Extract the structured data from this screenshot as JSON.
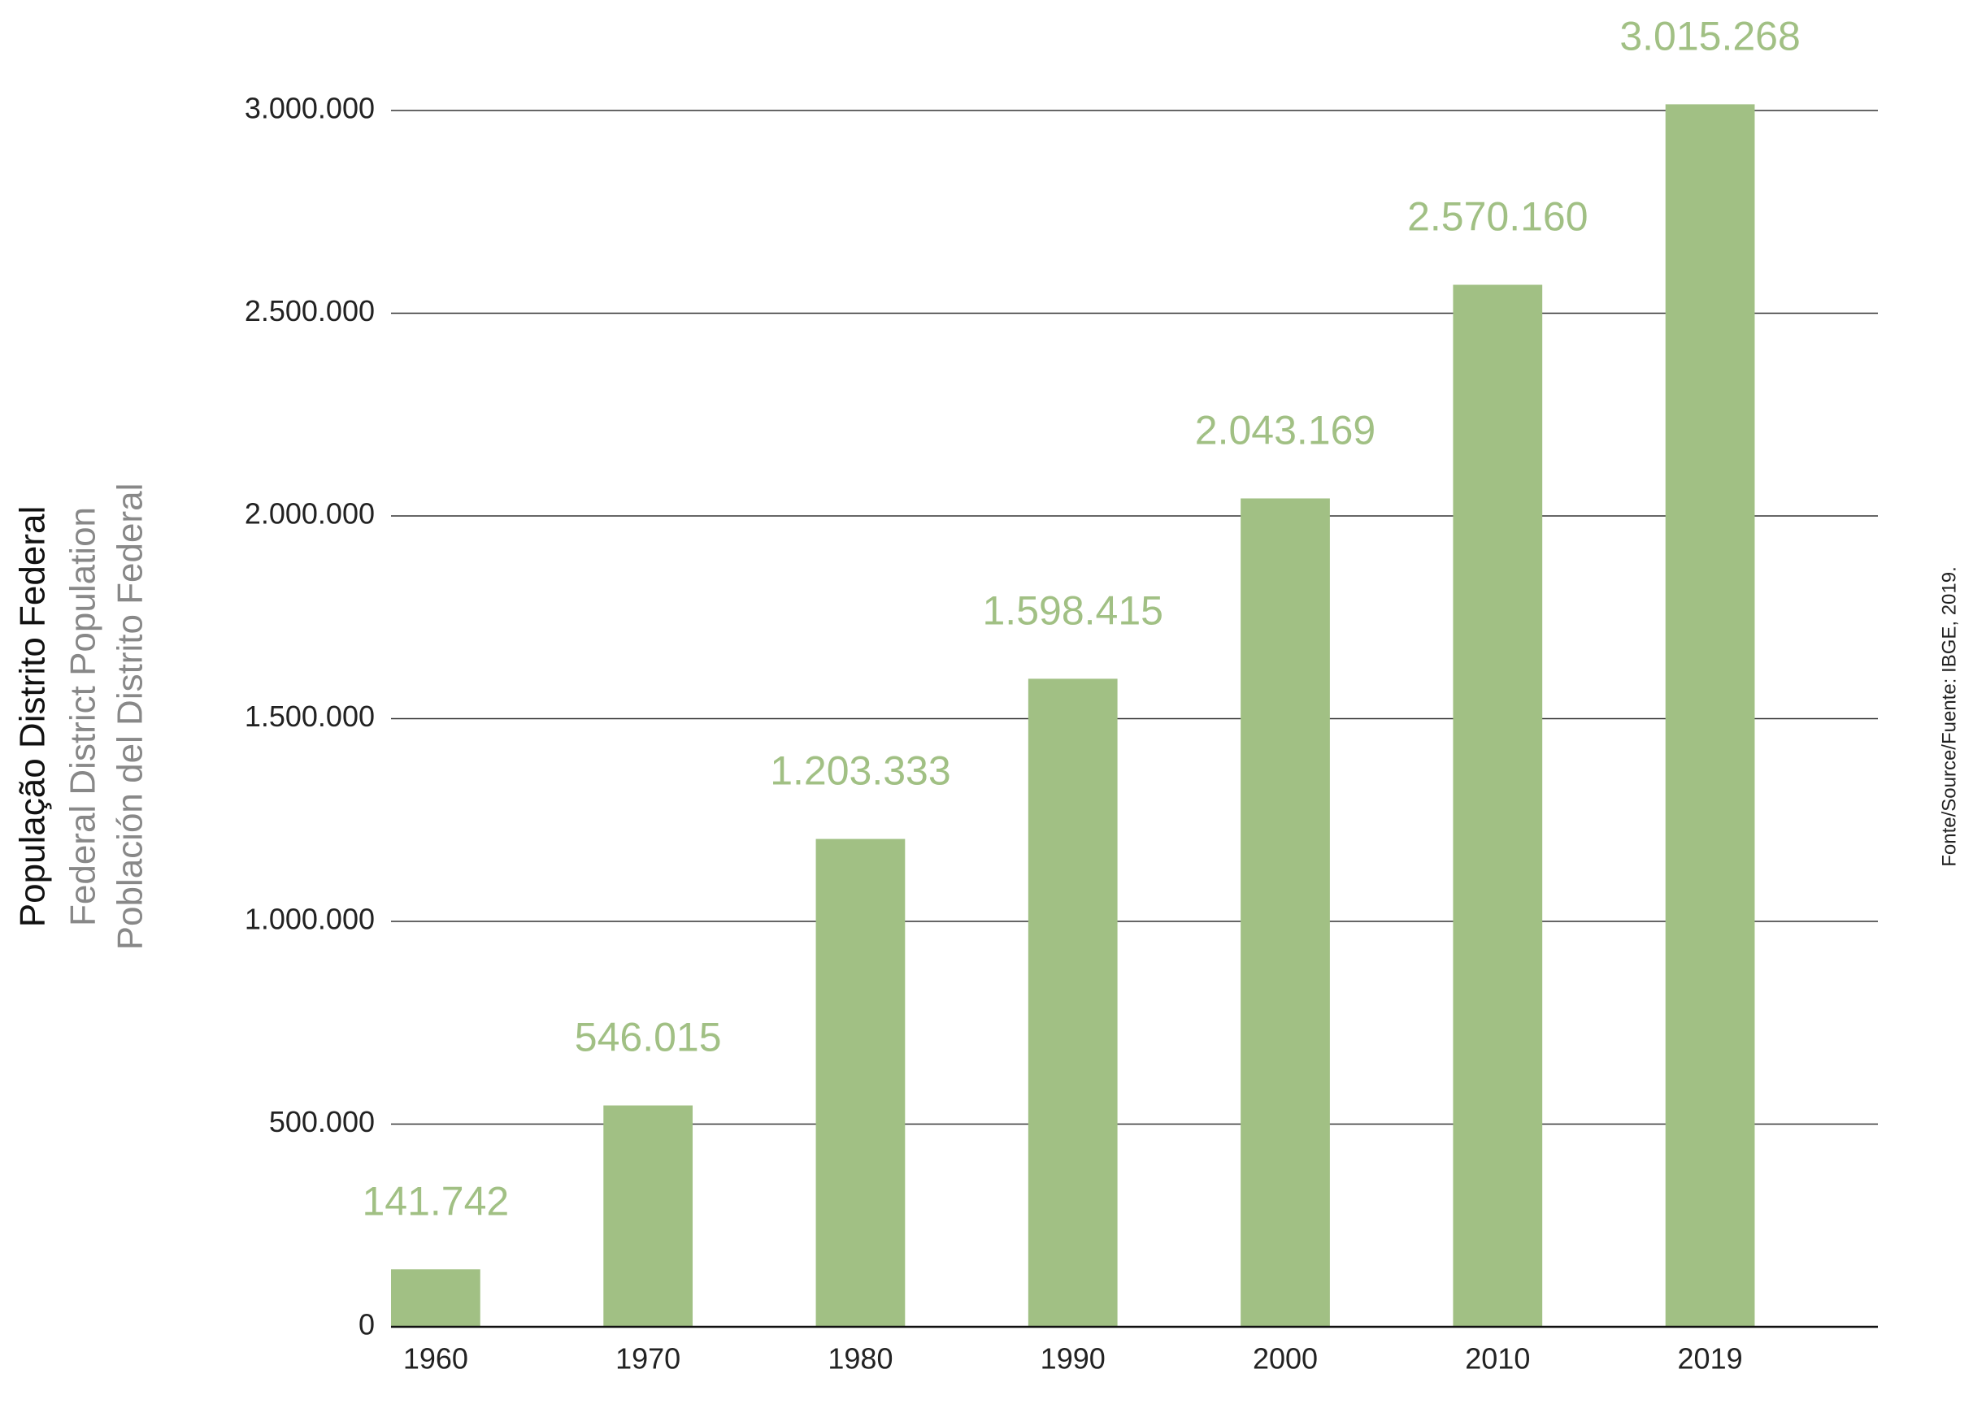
{
  "chart_data": {
    "type": "bar",
    "axis_title": [
      "População Distrito Federal",
      "Federal District Population",
      "Población del Distrito Federal"
    ],
    "source": "Fonte/Source/Fuente: IBGE, 2019.",
    "categories": [
      "1960",
      "1970",
      "1980",
      "1990",
      "2000",
      "2010",
      "2019"
    ],
    "values": [
      141742,
      546015,
      1203333,
      1598415,
      2043169,
      2570160,
      3015268
    ],
    "value_labels": [
      "141.742",
      "546.015",
      "1.203.333",
      "1.598.415",
      "2.043.169",
      "2.570.160",
      "3.015.268"
    ],
    "color": "#a1c084",
    "ylim": [
      0,
      3000000
    ],
    "yticks": [
      0,
      {
        "value": 500000,
        "label": "500.000"
      },
      {
        "value": 1000000,
        "label": "1.000.000"
      },
      {
        "value": 1500000,
        "label": "1.500.000"
      },
      {
        "value": 2000000,
        "label": "2.000.000"
      },
      {
        "value": 2500000,
        "label": "2.500.000"
      },
      {
        "value": 3000000,
        "label": "3.000.000"
      }
    ],
    "grid": true
  }
}
